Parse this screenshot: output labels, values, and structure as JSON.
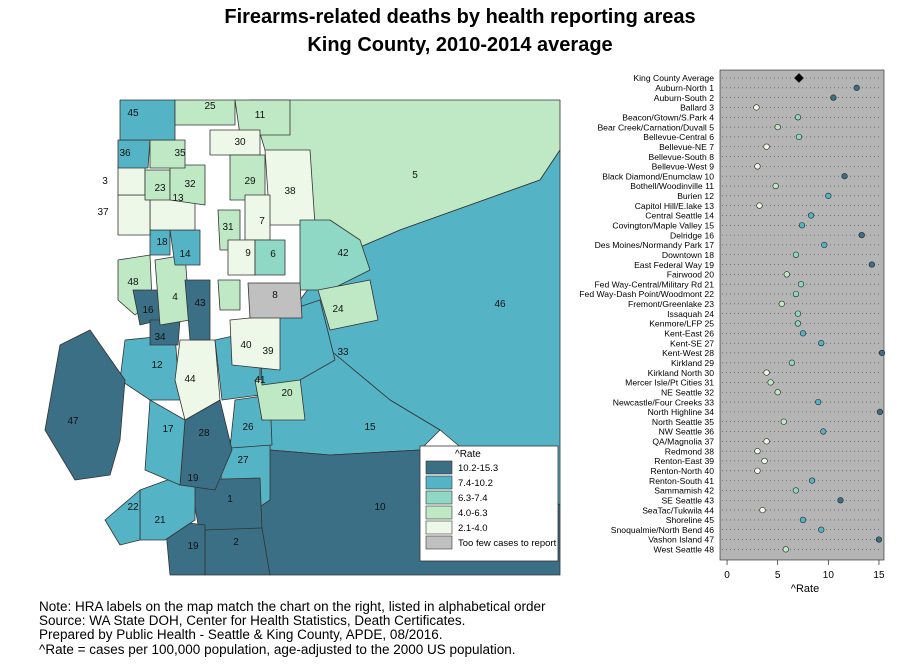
{
  "title_line1": "Firearms-related deaths by health reporting areas",
  "title_line2": "King County, 2010-2014 average",
  "colors": {
    "bin1": "#3b6f85",
    "bin2": "#55b3c6",
    "bin3": "#8fd8c5",
    "bin4": "#bfe8c4",
    "bin5": "#eef8e8",
    "too_few": "#c0c0c0",
    "chart_bg": "#b5b5b5",
    "average": "#000000"
  },
  "legend": {
    "title": "^Rate",
    "items": [
      {
        "label": "10.2-15.3",
        "color": "#3b6f85"
      },
      {
        "label": "7.4-10.2",
        "color": "#55b3c6"
      },
      {
        "label": "6.3-7.4",
        "color": "#8fd8c5"
      },
      {
        "label": "4.0-6.3",
        "color": "#bfe8c4"
      },
      {
        "label": "2.1-4.0",
        "color": "#eef8e8"
      },
      {
        "label": "Too few cases to report",
        "color": "#c0c0c0"
      }
    ]
  },
  "map_labels": [
    "45",
    "25",
    "11",
    "30",
    "36",
    "35",
    "5",
    "29",
    "38",
    "3",
    "23",
    "32",
    "37",
    "13",
    "7",
    "31",
    "18",
    "14",
    "9",
    "6",
    "42",
    "48",
    "4",
    "43",
    "8",
    "24",
    "16",
    "34",
    "46",
    "40",
    "39",
    "33",
    "12",
    "44",
    "41",
    "20",
    "47",
    "17",
    "28",
    "26",
    "15",
    "27",
    "19",
    "10",
    "22",
    "21",
    "1",
    "2",
    "19"
  ],
  "notes": [
    "Note: HRA labels on the map match the chart on the right, listed in alphabetical order",
    "Source: WA State DOH, Center for Health Statistics, Death Certificates.",
    "Prepared by Public Health - Seattle & King County, APDE, 08/2016.",
    "^Rate = cases per 100,000 population, age-adjusted to the 2000 US population."
  ],
  "chart_data": {
    "type": "scatter",
    "title": "Firearms-related deaths by health reporting areas, King County, 2010-2014 average",
    "xlabel": "^Rate",
    "ylabel": "",
    "xlim": [
      -0.5,
      15.3
    ],
    "xticks": [
      0,
      5,
      10,
      15
    ],
    "grid": "dotted horizontal",
    "categories": [
      "King County Average",
      "Auburn-North 1",
      "Auburn-South 2",
      "Ballard 3",
      "Beacon/Gtown/S.Park 4",
      "Bear Creek/Carnation/Duvall 5",
      "Bellevue-Central 6",
      "Bellevue-NE 7",
      "Bellevue-South 8",
      "Bellevue-West 9",
      "Black Diamond/Enumclaw 10",
      "Bothell/Woodinville 11",
      "Burien 12",
      "Capitol Hill/E.lake 13",
      "Central Seattle 14",
      "Covington/Maple Valley 15",
      "Delridge 16",
      "Des Moines/Normandy Park 17",
      "Downtown 18",
      "East Federal Way 19",
      "Fairwood 20",
      "Fed Way-Central/Military Rd 21",
      "Fed Way-Dash Point/Woodmont 22",
      "Fremont/Greenlake 23",
      "Issaquah 24",
      "Kenmore/LFP 25",
      "Kent-East 26",
      "Kent-SE 27",
      "Kent-West 28",
      "Kirkland 29",
      "Kirkland North 30",
      "Mercer Isle/Pt Cities 31",
      "NE Seattle 32",
      "Newcastle/Four Creeks 33",
      "North Highline 34",
      "North Seattle 35",
      "NW Seattle 36",
      "QA/Magnolia 37",
      "Redmond 38",
      "Renton-East 39",
      "Renton-North 40",
      "Renton-South 41",
      "Sammamish 42",
      "SE Seattle 43",
      "SeaTac/Tukwila 44",
      "Shoreline 45",
      "Snoqualmie/North Bend 46",
      "Vashon Island 47",
      "West Seattle 48"
    ],
    "values": [
      7.1,
      12.8,
      10.5,
      2.9,
      7.0,
      5.0,
      7.1,
      3.9,
      null,
      3.0,
      11.6,
      4.8,
      10.0,
      3.2,
      8.3,
      7.4,
      13.3,
      9.6,
      6.8,
      14.3,
      5.9,
      7.3,
      6.8,
      5.4,
      7.0,
      7.0,
      7.5,
      9.3,
      15.3,
      6.4,
      3.9,
      4.3,
      5.0,
      9.0,
      15.1,
      5.6,
      9.5,
      3.9,
      3.0,
      3.7,
      3.0,
      8.4,
      6.8,
      11.2,
      3.5,
      7.5,
      9.3,
      15.0,
      5.8
    ]
  }
}
